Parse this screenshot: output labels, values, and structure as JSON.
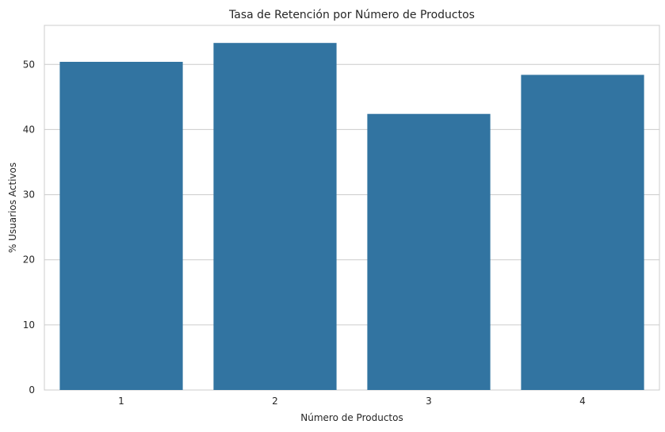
{
  "chart_data": {
    "type": "bar",
    "title": "Tasa de Retención por Número de Productos",
    "xlabel": "Número de Productos",
    "ylabel": "% Usuarios Activos",
    "categories": [
      "1",
      "2",
      "3",
      "4"
    ],
    "values": [
      50.4,
      53.3,
      42.4,
      48.4
    ],
    "ylim": [
      0,
      56
    ],
    "yticks": [
      0,
      10,
      20,
      30,
      40,
      50
    ],
    "grid": true,
    "bar_color": "#3274a1"
  }
}
